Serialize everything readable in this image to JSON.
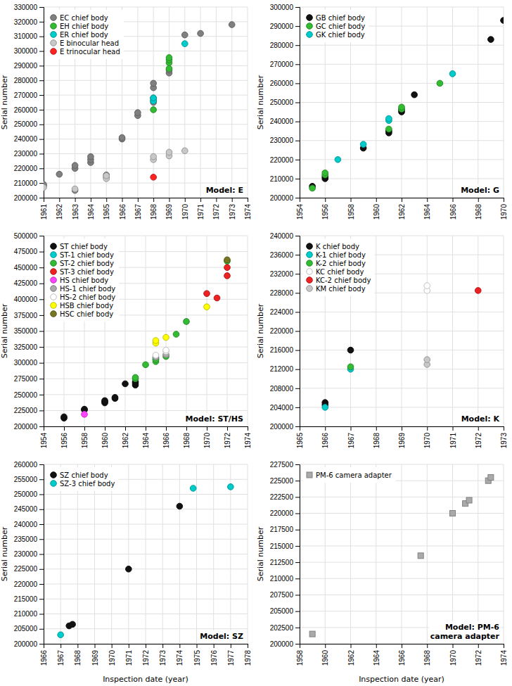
{
  "chart_data": [
    {
      "type": "scatter",
      "title": "Model: E",
      "ylabel": "Serial number",
      "xlim": [
        1961,
        1974
      ],
      "ylim": [
        200000,
        330000
      ],
      "xticks": [
        1961,
        1962,
        1963,
        1964,
        1965,
        1966,
        1967,
        1968,
        1969,
        1970,
        1971,
        1972,
        1973,
        1974
      ],
      "yticks": [
        200000,
        210000,
        220000,
        230000,
        240000,
        250000,
        260000,
        270000,
        280000,
        290000,
        300000,
        310000,
        320000,
        330000
      ],
      "grid": true,
      "legend": "upper left",
      "series": [
        {
          "name": "EC chief body",
          "color": "#808080",
          "x": [
            1961,
            1961,
            1962,
            1963,
            1963,
            1963,
            1964,
            1964,
            1964,
            1965,
            1965,
            1966,
            1966,
            1967,
            1967,
            1968,
            1968,
            1968,
            1968,
            1968,
            1969,
            1969,
            1970,
            1971,
            1973
          ],
          "values": [
            208000,
            209000,
            216000,
            205000,
            220000,
            222000,
            224000,
            226000,
            228000,
            214000,
            215500,
            240000,
            241000,
            256000,
            258000,
            265000,
            266500,
            268000,
            275000,
            278000,
            285000,
            287000,
            311000,
            312000,
            318000
          ]
        },
        {
          "name": "EH chief body",
          "color": "#33bb33",
          "x": [
            1968,
            1969,
            1969,
            1969,
            1969
          ],
          "values": [
            260000,
            288000,
            292000,
            294000,
            295500
          ]
        },
        {
          "name": "ER chief body",
          "color": "#00cccc",
          "x": [
            1968,
            1968,
            1970
          ],
          "values": [
            266000,
            268000,
            305000
          ]
        },
        {
          "name": "E binocular head",
          "color": "#c8c8c8",
          "x": [
            1961,
            1963,
            1965,
            1965,
            1968,
            1968,
            1969,
            1969,
            1970
          ],
          "values": [
            207000,
            206000,
            213000,
            215000,
            226000,
            228000,
            228500,
            231000,
            232000
          ]
        },
        {
          "name": "E trinocular head",
          "color": "#ff2222",
          "x": [
            1968
          ],
          "values": [
            214000
          ]
        }
      ]
    },
    {
      "type": "scatter",
      "title": "Model: G",
      "ylabel": "Serial number",
      "xlim": [
        1954,
        1970
      ],
      "ylim": [
        200000,
        300000
      ],
      "xticks": [
        1954,
        1956,
        1958,
        1960,
        1962,
        1964,
        1966,
        1968,
        1970
      ],
      "yticks": [
        200000,
        210000,
        220000,
        230000,
        240000,
        250000,
        260000,
        270000,
        280000,
        290000,
        300000
      ],
      "grid": true,
      "legend": "upper left",
      "series": [
        {
          "name": "GB chief body",
          "color": "#111111",
          "x": [
            1955,
            1956,
            1956,
            1959,
            1961,
            1961,
            1962,
            1962,
            1963,
            1969,
            1970
          ],
          "values": [
            206000,
            210000,
            211000,
            226000,
            234000,
            235000,
            245000,
            246000,
            254000,
            283000,
            293000
          ]
        },
        {
          "name": "GC chief body",
          "color": "#33bb33",
          "x": [
            1955,
            1956,
            1956,
            1961,
            1962,
            1962,
            1965
          ],
          "values": [
            205000,
            212000,
            213000,
            236000,
            246500,
            247500,
            260000
          ]
        },
        {
          "name": "GK chief body",
          "color": "#00cccc",
          "x": [
            1957,
            1959,
            1961,
            1961,
            1966
          ],
          "values": [
            220000,
            228000,
            240500,
            241500,
            265000
          ]
        }
      ]
    },
    {
      "type": "scatter",
      "title": "Model: ST/HS",
      "ylabel": "Serial number",
      "xlim": [
        1954,
        1974
      ],
      "ylim": [
        200000,
        500000
      ],
      "xticks": [
        1954,
        1956,
        1958,
        1960,
        1962,
        1964,
        1966,
        1968,
        1970,
        1972,
        1974
      ],
      "yticks": [
        200000,
        225000,
        250000,
        275000,
        300000,
        325000,
        350000,
        375000,
        400000,
        425000,
        450000,
        475000,
        500000
      ],
      "grid": true,
      "legend": "upper left",
      "series": [
        {
          "name": "ST chief body",
          "color": "#111111",
          "x": [
            1956,
            1956,
            1958,
            1958,
            1960,
            1960,
            1960,
            1961,
            1961,
            1962,
            1963,
            1963,
            1963
          ],
          "values": [
            213000,
            215000,
            226000,
            227000,
            237000,
            239000,
            240500,
            244000,
            245500,
            267000,
            265000,
            268000,
            270000
          ]
        },
        {
          "name": "ST-1 chief body",
          "color": "#00cccc",
          "x": [
            1965,
            1965
          ],
          "values": [
            306000,
            308000
          ]
        },
        {
          "name": "ST-2 chief body",
          "color": "#33bb33",
          "x": [
            1963,
            1963,
            1964,
            1965,
            1965,
            1966,
            1967,
            1968,
            1972
          ],
          "values": [
            275000,
            277000,
            297000,
            302000,
            305000,
            310000,
            345000,
            365000,
            460000
          ]
        },
        {
          "name": "ST-3 chief body",
          "color": "#ee2222",
          "x": [
            1970,
            1971,
            1972,
            1972
          ],
          "values": [
            409000,
            402000,
            437000,
            450000
          ]
        },
        {
          "name": "HS chief body",
          "color": "#ff44ff",
          "x": [
            1958
          ],
          "values": [
            219000
          ]
        },
        {
          "name": "HS-1 chief body",
          "color": "#aaaaaa",
          "x": [
            1965,
            1966
          ],
          "values": [
            309000,
            313000
          ]
        },
        {
          "name": "HS-2 chief body",
          "color": "#ffffff",
          "x": [
            1965,
            1966,
            1966
          ],
          "values": [
            312000,
            318000,
            320000
          ]
        },
        {
          "name": "HSB chief body",
          "color": "#ffff00",
          "x": [
            1965,
            1965,
            1966,
            1970
          ],
          "values": [
            331000,
            335000,
            340000,
            388000
          ]
        },
        {
          "name": "HSC chief body",
          "color": "#777722",
          "x": [
            1972
          ],
          "values": [
            462000
          ]
        }
      ]
    },
    {
      "type": "scatter",
      "title": "Model: K",
      "ylabel": "Serial number",
      "xlim": [
        1965,
        1973
      ],
      "ylim": [
        200000,
        240000
      ],
      "xticks": [
        1965,
        1966,
        1967,
        1968,
        1969,
        1970,
        1971,
        1972,
        1973
      ],
      "yticks": [
        200000,
        204000,
        208000,
        212000,
        216000,
        220000,
        224000,
        228000,
        232000,
        236000,
        240000
      ],
      "grid": true,
      "legend": "upper left",
      "series": [
        {
          "name": "K chief body",
          "color": "#111111",
          "x": [
            1966,
            1966,
            1967
          ],
          "values": [
            204500,
            205000,
            216000
          ]
        },
        {
          "name": "K-1 chief body",
          "color": "#00cccc",
          "x": [
            1966,
            1967
          ],
          "values": [
            204000,
            212000
          ]
        },
        {
          "name": "K-2 chief body",
          "color": "#33bb33",
          "x": [
            1967
          ],
          "values": [
            212500
          ]
        },
        {
          "name": "KC chief body",
          "color": "#ffffff",
          "x": [
            1970,
            1970
          ],
          "values": [
            228500,
            229500
          ]
        },
        {
          "name": "KC-2 chief body",
          "color": "#ee2222",
          "x": [
            1972
          ],
          "values": [
            228500
          ]
        },
        {
          "name": "KM chief body",
          "color": "#c8c8c8",
          "x": [
            1970,
            1970
          ],
          "values": [
            213000,
            214000
          ]
        }
      ]
    },
    {
      "type": "scatter",
      "title": "Model: SZ",
      "xlabel": "Inspection date (year)",
      "ylabel": "Serial number",
      "xlim": [
        1966,
        1978
      ],
      "ylim": [
        200000,
        260000
      ],
      "xticks": [
        1966,
        1967,
        1968,
        1969,
        1970,
        1971,
        1972,
        1973,
        1974,
        1975,
        1976,
        1977,
        1978
      ],
      "yticks": [
        200000,
        205000,
        210000,
        215000,
        220000,
        225000,
        230000,
        235000,
        240000,
        245000,
        250000,
        255000,
        260000
      ],
      "grid": true,
      "legend": "upper left",
      "series": [
        {
          "name": "SZ chief body",
          "color": "#111111",
          "x": [
            1967.5,
            1967.7,
            1971,
            1974
          ],
          "values": [
            206000,
            206500,
            225000,
            246000
          ]
        },
        {
          "name": "SZ-3 chief body",
          "color": "#00cccc",
          "x": [
            1967,
            1974.8,
            1977
          ],
          "values": [
            203000,
            252000,
            252500
          ]
        }
      ]
    },
    {
      "type": "scatter",
      "title": "Model: PM-6\ncamera adapter",
      "xlabel": "Inspection date (year)",
      "ylabel": "Serial number",
      "xlim": [
        1958,
        1974
      ],
      "ylim": [
        200000,
        227500
      ],
      "xticks": [
        1958,
        1960,
        1962,
        1964,
        1966,
        1968,
        1970,
        1972,
        1974
      ],
      "yticks": [
        200000,
        202500,
        205000,
        207500,
        210000,
        212500,
        215000,
        217500,
        220000,
        222500,
        225000,
        227500
      ],
      "grid": true,
      "legend": "upper left",
      "series": [
        {
          "name": "PM-6 camera adapter",
          "color": "#aaaaaa",
          "marker": "square",
          "x": [
            1959,
            1967.5,
            1970,
            1971,
            1971.3,
            1972.8,
            1973
          ],
          "values": [
            201500,
            213500,
            220000,
            221500,
            222000,
            225000,
            225500
          ]
        }
      ]
    }
  ]
}
